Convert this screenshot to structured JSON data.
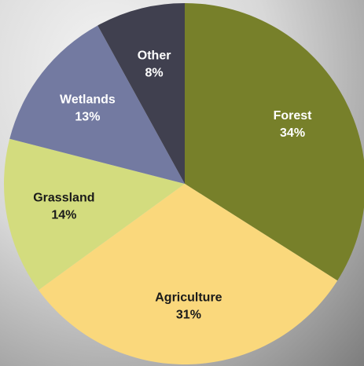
{
  "chart_data": {
    "type": "pie",
    "categories": [
      "Forest",
      "Agriculture",
      "Grassland",
      "Wetlands",
      "Other"
    ],
    "values": [
      34,
      31,
      14,
      13,
      8
    ],
    "value_labels": [
      "34%",
      "31%",
      "14%",
      "13%",
      "8%"
    ],
    "colors": [
      "#77802a",
      "#fad87c",
      "#d3dc7e",
      "#737aa1",
      "#40404f"
    ],
    "label_colors": [
      "#ffffff",
      "#1a1a1a",
      "#1a1a1a",
      "#ffffff",
      "#ffffff"
    ],
    "start_angle": 0,
    "direction": "clockwise"
  }
}
